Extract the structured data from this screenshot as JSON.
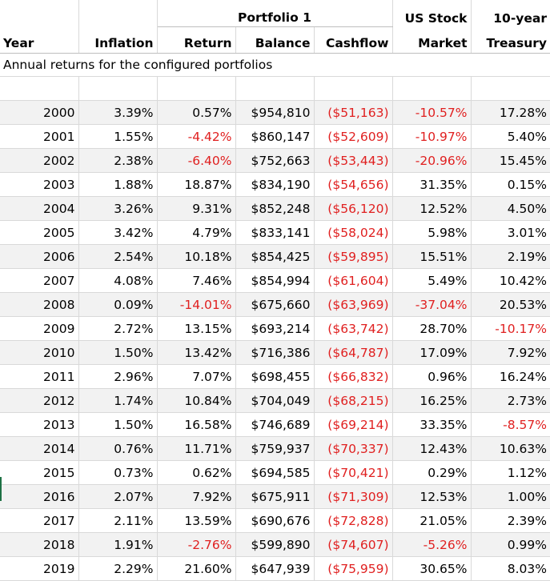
{
  "header": {
    "portfolio_group": "Portfolio 1",
    "us_stock_line1": "US Stock",
    "us_stock_line2": "Market",
    "treasury_line1": "10-year",
    "treasury_line2": "Treasury",
    "year": "Year",
    "inflation": "Inflation",
    "return": "Return",
    "balance": "Balance",
    "cashflow": "Cashflow"
  },
  "subtitle": "Annual returns for the configured portfolios",
  "rows": [
    {
      "year": "2000",
      "inflation": "3.39%",
      "return": "0.57%",
      "balance": "$954,810",
      "cashflow": "($51,163)",
      "us_stock": "-10.57%",
      "treasury": "17.28%"
    },
    {
      "year": "2001",
      "inflation": "1.55%",
      "return": "-4.42%",
      "balance": "$860,147",
      "cashflow": "($52,609)",
      "us_stock": "-10.97%",
      "treasury": "5.40%"
    },
    {
      "year": "2002",
      "inflation": "2.38%",
      "return": "-6.40%",
      "balance": "$752,663",
      "cashflow": "($53,443)",
      "us_stock": "-20.96%",
      "treasury": "15.45%"
    },
    {
      "year": "2003",
      "inflation": "1.88%",
      "return": "18.87%",
      "balance": "$834,190",
      "cashflow": "($54,656)",
      "us_stock": "31.35%",
      "treasury": "0.15%"
    },
    {
      "year": "2004",
      "inflation": "3.26%",
      "return": "9.31%",
      "balance": "$852,248",
      "cashflow": "($56,120)",
      "us_stock": "12.52%",
      "treasury": "4.50%"
    },
    {
      "year": "2005",
      "inflation": "3.42%",
      "return": "4.79%",
      "balance": "$833,141",
      "cashflow": "($58,024)",
      "us_stock": "5.98%",
      "treasury": "3.01%"
    },
    {
      "year": "2006",
      "inflation": "2.54%",
      "return": "10.18%",
      "balance": "$854,425",
      "cashflow": "($59,895)",
      "us_stock": "15.51%",
      "treasury": "2.19%"
    },
    {
      "year": "2007",
      "inflation": "4.08%",
      "return": "7.46%",
      "balance": "$854,994",
      "cashflow": "($61,604)",
      "us_stock": "5.49%",
      "treasury": "10.42%"
    },
    {
      "year": "2008",
      "inflation": "0.09%",
      "return": "-14.01%",
      "balance": "$675,660",
      "cashflow": "($63,969)",
      "us_stock": "-37.04%",
      "treasury": "20.53%"
    },
    {
      "year": "2009",
      "inflation": "2.72%",
      "return": "13.15%",
      "balance": "$693,214",
      "cashflow": "($63,742)",
      "us_stock": "28.70%",
      "treasury": "-10.17%"
    },
    {
      "year": "2010",
      "inflation": "1.50%",
      "return": "13.42%",
      "balance": "$716,386",
      "cashflow": "($64,787)",
      "us_stock": "17.09%",
      "treasury": "7.92%"
    },
    {
      "year": "2011",
      "inflation": "2.96%",
      "return": "7.07%",
      "balance": "$698,455",
      "cashflow": "($66,832)",
      "us_stock": "0.96%",
      "treasury": "16.24%"
    },
    {
      "year": "2012",
      "inflation": "1.74%",
      "return": "10.84%",
      "balance": "$704,049",
      "cashflow": "($68,215)",
      "us_stock": "16.25%",
      "treasury": "2.73%"
    },
    {
      "year": "2013",
      "inflation": "1.50%",
      "return": "16.58%",
      "balance": "$746,689",
      "cashflow": "($69,214)",
      "us_stock": "33.35%",
      "treasury": "-8.57%"
    },
    {
      "year": "2014",
      "inflation": "0.76%",
      "return": "11.71%",
      "balance": "$759,937",
      "cashflow": "($70,337)",
      "us_stock": "12.43%",
      "treasury": "10.63%"
    },
    {
      "year": "2015",
      "inflation": "0.73%",
      "return": "0.62%",
      "balance": "$694,585",
      "cashflow": "($70,421)",
      "us_stock": "0.29%",
      "treasury": "1.12%"
    },
    {
      "year": "2016",
      "inflation": "2.07%",
      "return": "7.92%",
      "balance": "$675,911",
      "cashflow": "($71,309)",
      "us_stock": "12.53%",
      "treasury": "1.00%"
    },
    {
      "year": "2017",
      "inflation": "2.11%",
      "return": "13.59%",
      "balance": "$690,676",
      "cashflow": "($72,828)",
      "us_stock": "21.05%",
      "treasury": "2.39%"
    },
    {
      "year": "2018",
      "inflation": "1.91%",
      "return": "-2.76%",
      "balance": "$599,890",
      "cashflow": "($74,607)",
      "us_stock": "-5.26%",
      "treasury": "0.99%"
    },
    {
      "year": "2019",
      "inflation": "2.29%",
      "return": "21.60%",
      "balance": "$647,939",
      "cashflow": "($75,959)",
      "us_stock": "30.65%",
      "treasury": "8.03%"
    }
  ],
  "colors": {
    "negative": "#e02020",
    "stripe": "#f2f2f2",
    "gridline": "#d9d9d9"
  }
}
